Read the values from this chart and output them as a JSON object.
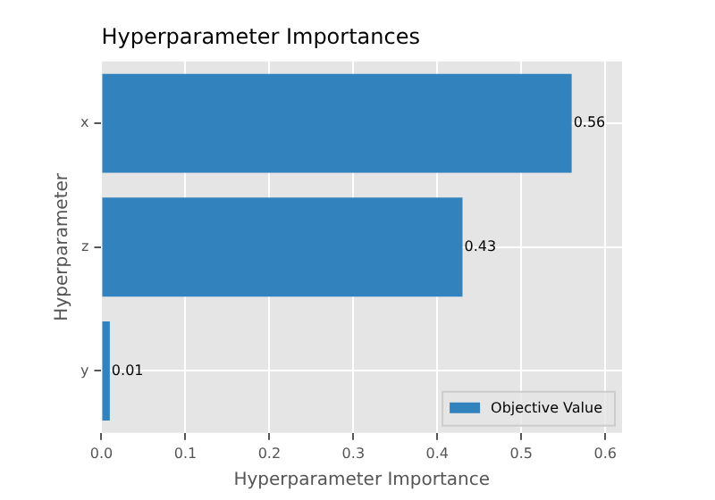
{
  "chart_data": {
    "type": "bar",
    "orientation": "horizontal",
    "title": "Hyperparameter Importances",
    "xlabel": "Hyperparameter Importance",
    "ylabel": "Hyperparameter",
    "categories": [
      "x",
      "z",
      "y"
    ],
    "series": [
      {
        "name": "Objective Value",
        "color": "#3182bd",
        "values": [
          0.56,
          0.43,
          0.01
        ]
      }
    ],
    "xlim": [
      0,
      0.62
    ],
    "xticks": [
      {
        "value": 0,
        "label": "0.0"
      },
      {
        "value": 0.1,
        "label": "0.1"
      },
      {
        "value": 0.2,
        "label": "0.2"
      },
      {
        "value": 0.3,
        "label": "0.3"
      },
      {
        "value": 0.4,
        "label": "0.4"
      },
      {
        "value": 0.5,
        "label": "0.5"
      },
      {
        "value": 0.6,
        "label": "0.6"
      }
    ],
    "data_labels": true,
    "grid": true,
    "legend": "bottom right"
  }
}
